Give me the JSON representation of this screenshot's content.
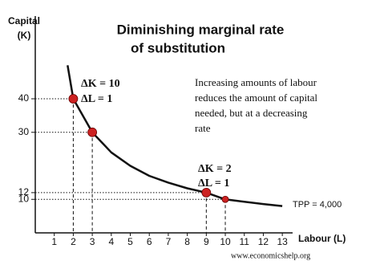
{
  "chart_data": {
    "type": "line",
    "title_lines": [
      "Diminishing marginal rate",
      "of substitution"
    ],
    "y_label_lines": [
      "Capital",
      "(K)"
    ],
    "x_label": "Labour (L)",
    "xlim": [
      0,
      13.5
    ],
    "ylim": [
      0,
      63
    ],
    "xticks": [
      1,
      2,
      3,
      4,
      5,
      6,
      7,
      8,
      9,
      10,
      11,
      12,
      13
    ],
    "yticks": [
      10,
      12,
      30,
      40
    ],
    "curve": {
      "label": "TPP = 4,000",
      "color": "#111111",
      "x": [
        1.7,
        2,
        3,
        4,
        5,
        6,
        7,
        8,
        9,
        10,
        11,
        12,
        13
      ],
      "values": [
        50,
        40,
        30,
        24,
        20,
        17,
        15,
        13.3,
        12,
        10,
        9.3,
        8.6,
        8
      ]
    },
    "points": {
      "color": "#cc2222",
      "x": [
        2,
        3,
        9,
        10
      ],
      "values": [
        40,
        30,
        12,
        10
      ]
    },
    "annotations": [
      {
        "lines": [
          "ΔK = 10",
          "ΔL = 1"
        ]
      },
      {
        "lines": [
          "ΔK = 2",
          "ΔL = 1"
        ]
      },
      {
        "lines": [
          "Increasing amounts of labour",
          "reduces the amount of capital",
          "needed, but at a decreasing",
          "rate"
        ]
      }
    ],
    "source": "www.economicshelp.org"
  }
}
